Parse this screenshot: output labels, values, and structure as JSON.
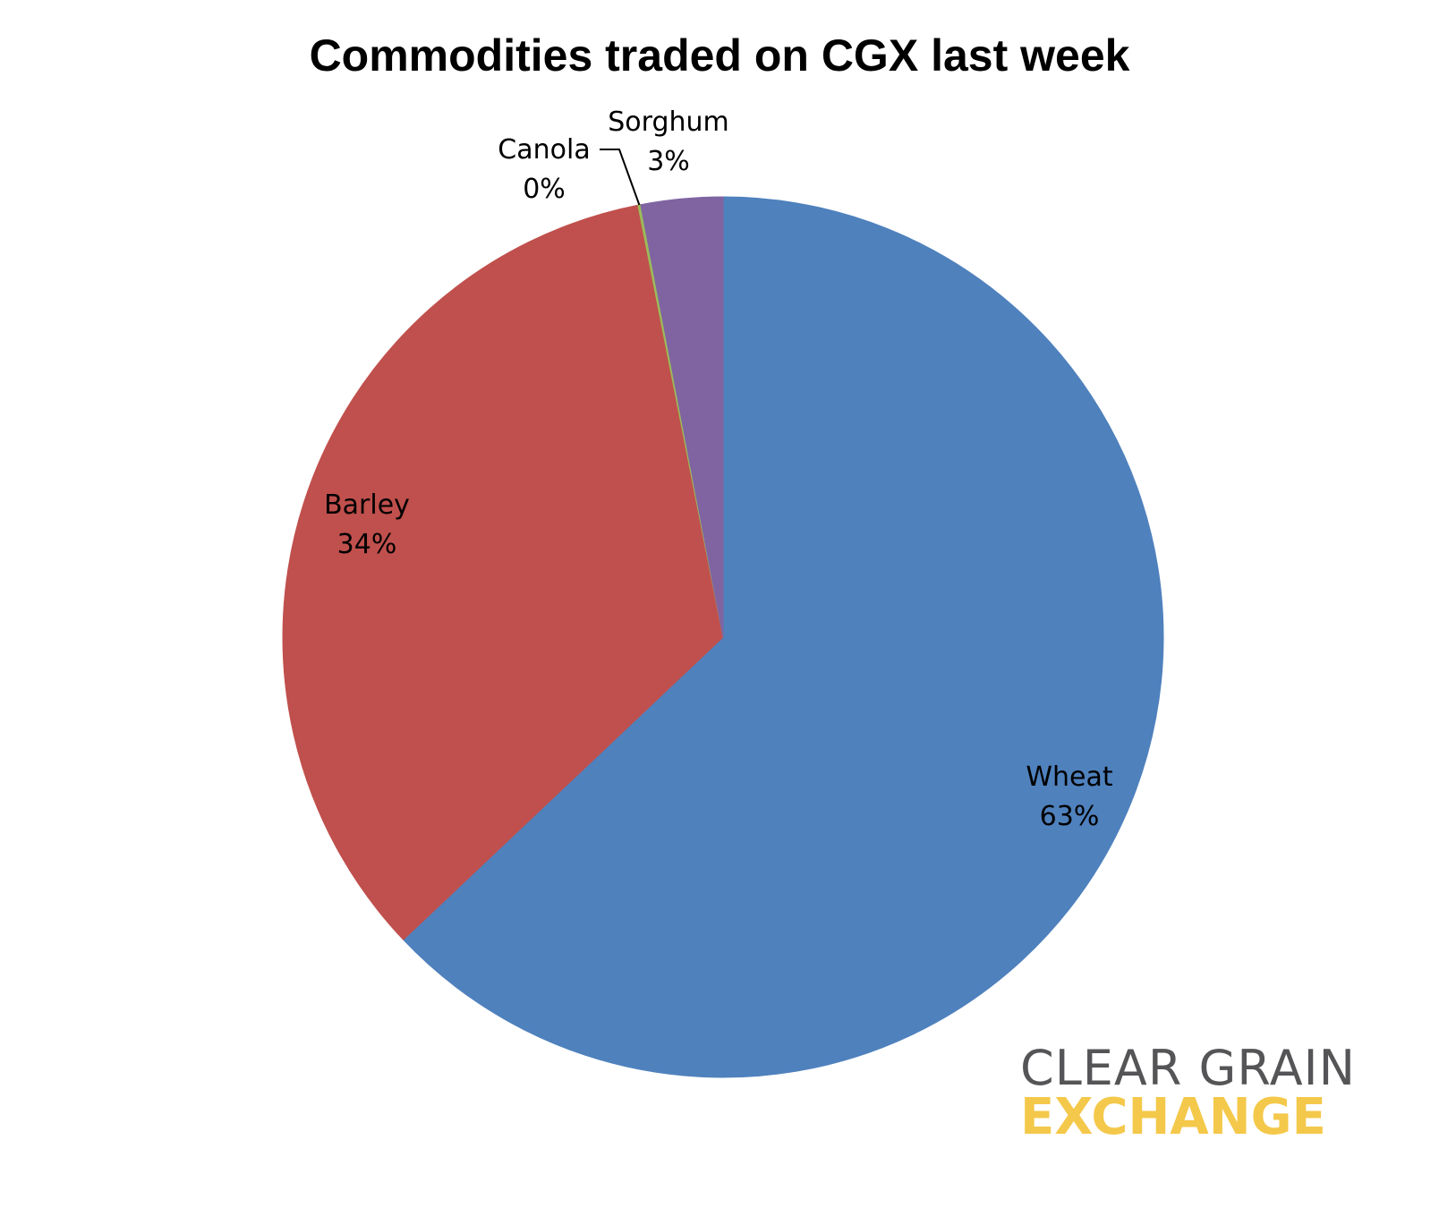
{
  "chart_data": {
    "type": "pie",
    "title": "Commodities traded on CGX last week",
    "slices": [
      {
        "name": "Wheat",
        "value": 63,
        "label": "63%",
        "color": "#4f81bd"
      },
      {
        "name": "Barley",
        "value": 34,
        "label": "34%",
        "color": "#c0504d"
      },
      {
        "name": "Canola",
        "value": 0.1,
        "label": "0%",
        "color": "#9bbb59"
      },
      {
        "name": "Sorghum",
        "value": 3,
        "label": "3%",
        "color": "#8064a2"
      }
    ],
    "direction": "clockwise-from-top",
    "legend": "none"
  },
  "logo": {
    "line1": "CLEAR GRAIN",
    "line2": "EXCHANGE",
    "line1_color": "#555557",
    "line2_color": "#f4c84a"
  }
}
